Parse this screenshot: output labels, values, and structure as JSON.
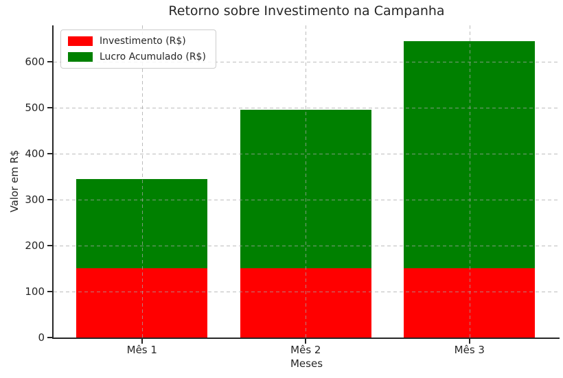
{
  "chart_data": {
    "type": "bar",
    "stacked": true,
    "title": "Retorno sobre Investimento na Campanha",
    "xlabel": "Meses",
    "ylabel": "Valor em R$",
    "categories": [
      "Mês 1",
      "Mês 2",
      "Mês 3"
    ],
    "series": [
      {
        "name": "Investimento (R$)",
        "color": "#ff0000",
        "values": [
          150,
          150,
          150
        ]
      },
      {
        "name": "Lucro Acumulado (R$)",
        "color": "#008000",
        "values": [
          195,
          345,
          495
        ]
      }
    ],
    "yticks": [
      0,
      100,
      200,
      300,
      400,
      500,
      600
    ],
    "ylim": [
      0,
      679
    ],
    "xlim": [
      -0.54,
      2.55
    ],
    "bar_width": 0.8,
    "grid": {
      "visible": true,
      "style": "dashed",
      "axis": "both",
      "above_bars": true
    },
    "legend": {
      "position": "upper-left"
    },
    "colors": {
      "text": "#262626",
      "spine": "#262626",
      "grid": "#a5a5a5",
      "background": "#ffffff"
    }
  }
}
